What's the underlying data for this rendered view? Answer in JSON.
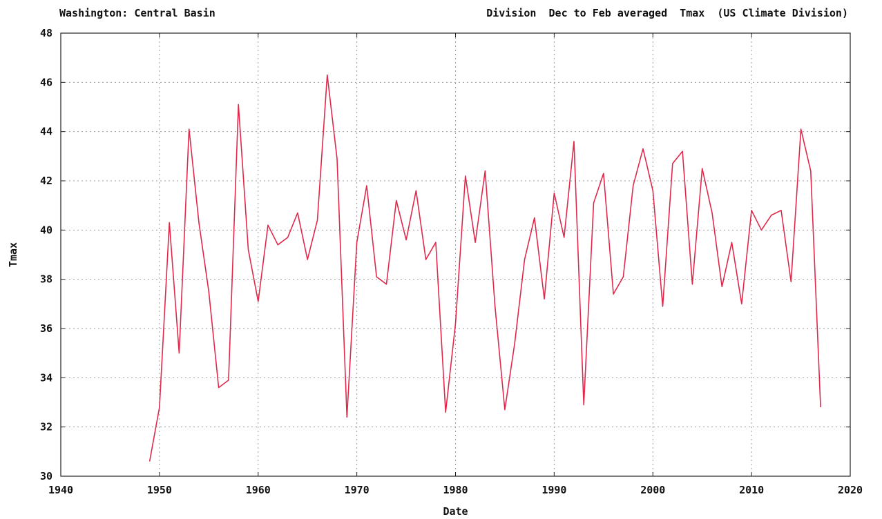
{
  "header": {
    "left_title": "Washington: Central Basin",
    "right_title": "Division  Dec to Feb averaged  Tmax  (US Climate Division)"
  },
  "chart_data": {
    "type": "line",
    "title": "Washington: Central Basin",
    "subtitle": "Division  Dec to Feb averaged  Tmax  (US Climate Division)",
    "xlabel": "Date",
    "ylabel": "Tmax",
    "xlim": [
      1940,
      2020
    ],
    "ylim": [
      30,
      48
    ],
    "xticks": [
      1940,
      1950,
      1960,
      1970,
      1980,
      1990,
      2000,
      2010,
      2020
    ],
    "yticks": [
      30,
      32,
      34,
      36,
      38,
      40,
      42,
      44,
      46,
      48
    ],
    "grid": true,
    "line_color": "#e0284a",
    "series": [
      {
        "x": [
          1949,
          1950,
          1951,
          1952,
          1953,
          1954,
          1955,
          1956,
          1957,
          1958,
          1959,
          1960,
          1961,
          1962,
          1963,
          1964,
          1965,
          1966,
          1967,
          1968,
          1969,
          1970,
          1971,
          1972,
          1973,
          1974,
          1975,
          1976,
          1977,
          1978,
          1979,
          1980,
          1981,
          1982,
          1983,
          1984,
          1985,
          1986,
          1987,
          1988,
          1989,
          1990,
          1991,
          1992,
          1993,
          1994,
          1995,
          1996,
          1997,
          1998,
          1999,
          2000,
          2001,
          2002,
          2003,
          2004,
          2005,
          2006,
          2007,
          2008,
          2009,
          2010,
          2011,
          2012,
          2013,
          2014,
          2015,
          2016,
          2017
        ],
        "y": [
          30.6,
          32.8,
          40.3,
          35.0,
          44.1,
          40.3,
          37.5,
          33.6,
          33.9,
          45.1,
          39.2,
          37.1,
          40.2,
          39.4,
          39.7,
          40.7,
          38.8,
          40.4,
          46.3,
          42.9,
          32.4,
          39.5,
          41.8,
          38.1,
          37.8,
          41.2,
          39.6,
          41.6,
          38.8,
          39.5,
          32.6,
          36.2,
          42.2,
          39.5,
          42.4,
          36.9,
          32.7,
          35.4,
          38.8,
          40.5,
          37.2,
          41.5,
          39.7,
          43.6,
          32.9,
          41.1,
          42.3,
          37.4,
          38.1,
          41.8,
          43.3,
          41.6,
          36.9,
          42.7,
          43.2,
          37.8,
          42.5,
          40.7,
          37.7,
          39.5,
          37.0,
          40.8,
          40.0,
          40.6,
          40.8,
          37.9,
          44.1,
          42.4,
          32.8
        ]
      }
    ]
  }
}
